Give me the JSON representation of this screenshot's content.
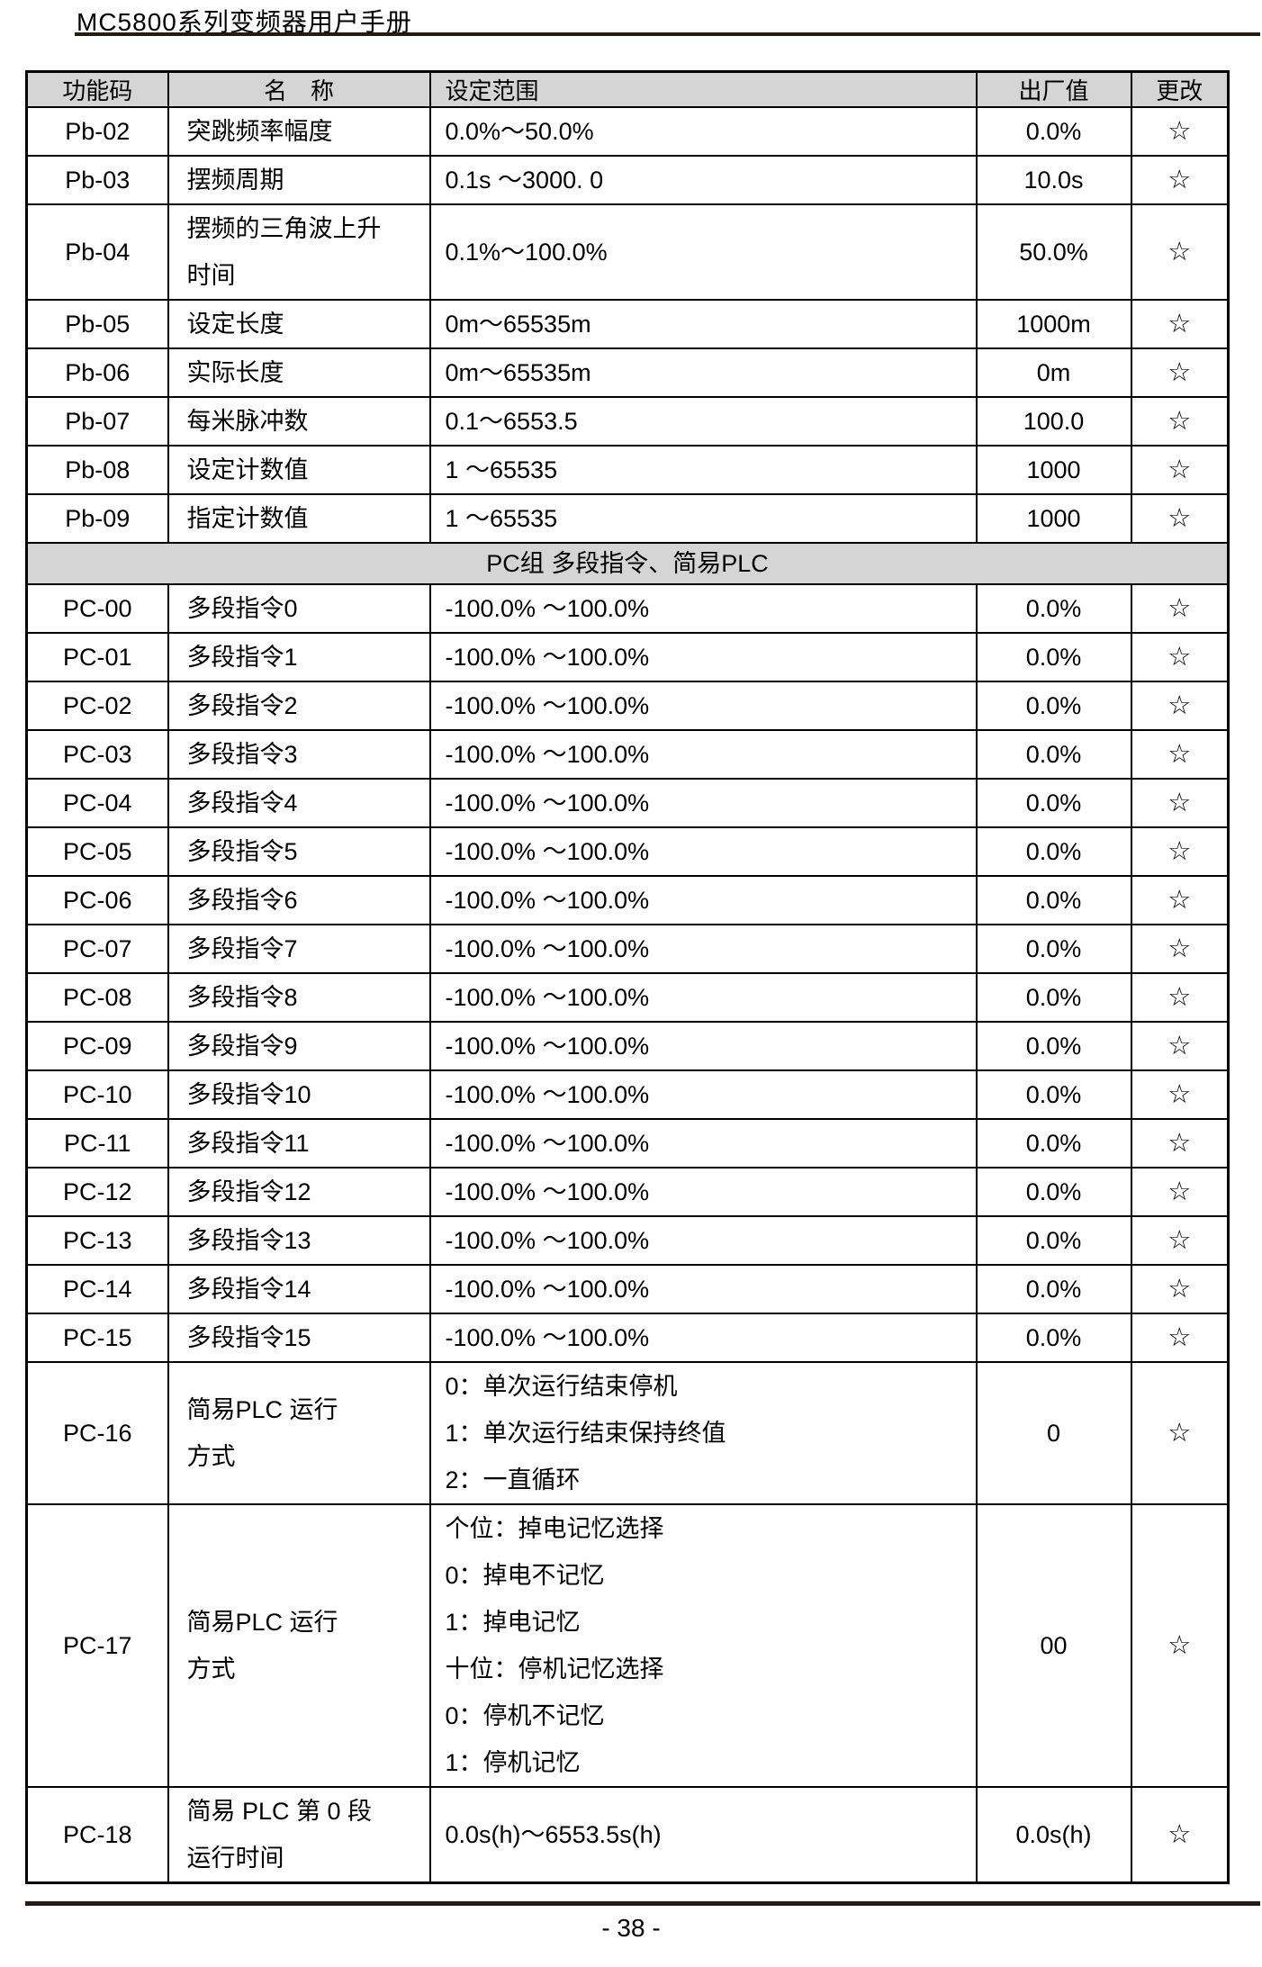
{
  "page": {
    "header_title": "MC5800系列变频器用户手册",
    "footer_page_number": "- 38 -"
  },
  "colors": {
    "header_bg": "#d5d5d5",
    "border": "#000000",
    "rule": "#241b15"
  },
  "table": {
    "columns": [
      "功能码",
      "名　称",
      "设定范围",
      "出厂值",
      "更改"
    ],
    "rows": [
      {
        "code": "Pb-02",
        "name": "突跳频率幅度",
        "range": "0.0%～50.0%",
        "default": "0.0%",
        "change": "☆"
      },
      {
        "code": "Pb-03",
        "name": "摆频周期",
        "range": "0.1s ～3000. 0",
        "default": "10.0s",
        "change": "☆"
      },
      {
        "code": "Pb-04",
        "name": "摆频的三角波上升\n时间",
        "range": "0.1%～100.0%",
        "default": "50.0%",
        "change": "☆"
      },
      {
        "code": "Pb-05",
        "name": "设定长度",
        "range": "0m～65535m",
        "default": "1000m",
        "change": "☆"
      },
      {
        "code": "Pb-06",
        "name": "实际长度",
        "range": "0m～65535m",
        "default": "0m",
        "change": "☆"
      },
      {
        "code": "Pb-07",
        "name": "每米脉冲数",
        "range": "0.1～6553.5",
        "default": "100.0",
        "change": "☆"
      },
      {
        "code": "Pb-08",
        "name": "设定计数值",
        "range": "1 ～65535",
        "default": "1000",
        "change": "☆"
      },
      {
        "code": "Pb-09",
        "name": "指定计数值",
        "range": "1 ～65535",
        "default": "1000",
        "change": "☆"
      },
      {
        "type": "section",
        "label": "PC组 多段指令、简易PLC"
      },
      {
        "code": "PC-00",
        "name": "多段指令0",
        "range": "-100.0% ～100.0%",
        "default": "0.0%",
        "change": "☆"
      },
      {
        "code": "PC-01",
        "name": "多段指令1",
        "range": "-100.0% ～100.0%",
        "default": "0.0%",
        "change": "☆"
      },
      {
        "code": "PC-02",
        "name": "多段指令2",
        "range": "-100.0% ～100.0%",
        "default": "0.0%",
        "change": "☆"
      },
      {
        "code": "PC-03",
        "name": "多段指令3",
        "range": "-100.0% ～100.0%",
        "default": "0.0%",
        "change": "☆"
      },
      {
        "code": "PC-04",
        "name": "多段指令4",
        "range": "-100.0% ～100.0%",
        "default": "0.0%",
        "change": "☆"
      },
      {
        "code": "PC-05",
        "name": "多段指令5",
        "range": "-100.0% ～100.0%",
        "default": "0.0%",
        "change": "☆"
      },
      {
        "code": "PC-06",
        "name": "多段指令6",
        "range": "-100.0% ～100.0%",
        "default": "0.0%",
        "change": "☆"
      },
      {
        "code": "PC-07",
        "name": "多段指令7",
        "range": "-100.0% ～100.0%",
        "default": "0.0%",
        "change": "☆"
      },
      {
        "code": "PC-08",
        "name": "多段指令8",
        "range": "-100.0% ～100.0%",
        "default": "0.0%",
        "change": "☆"
      },
      {
        "code": "PC-09",
        "name": "多段指令9",
        "range": "-100.0% ～100.0%",
        "default": "0.0%",
        "change": "☆"
      },
      {
        "code": "PC-10",
        "name": "多段指令10",
        "range": "-100.0% ～100.0%",
        "default": "0.0%",
        "change": "☆"
      },
      {
        "code": "PC-11",
        "name": "多段指令11",
        "range": "-100.0% ～100.0%",
        "default": "0.0%",
        "change": "☆"
      },
      {
        "code": "PC-12",
        "name": "多段指令12",
        "range": "-100.0% ～100.0%",
        "default": "0.0%",
        "change": "☆"
      },
      {
        "code": "PC-13",
        "name": "多段指令13",
        "range": "-100.0% ～100.0%",
        "default": "0.0%",
        "change": "☆"
      },
      {
        "code": "PC-14",
        "name": "多段指令14",
        "range": "-100.0% ～100.0%",
        "default": "0.0%",
        "change": "☆"
      },
      {
        "code": "PC-15",
        "name": "多段指令15",
        "range": "-100.0% ～100.0%",
        "default": "0.0%",
        "change": "☆"
      },
      {
        "code": "PC-16",
        "name": "简易PLC 运行\n方式",
        "range": "0：单次运行结束停机\n1：单次运行结束保持终值\n2：一直循环",
        "default": "0",
        "change": "☆"
      },
      {
        "code": "PC-17",
        "name": "简易PLC 运行\n方式",
        "range": "个位：掉电记忆选择\n0：掉电不记忆\n1：掉电记忆\n十位：停机记忆选择\n0：停机不记忆\n1：停机记忆",
        "default": "00",
        "change": "☆"
      },
      {
        "code": "PC-18",
        "name": "简易 PLC 第 0 段\n运行时间",
        "range": "0.0s(h)～6553.5s(h)",
        "default": "0.0s(h)",
        "change": "☆"
      }
    ]
  }
}
